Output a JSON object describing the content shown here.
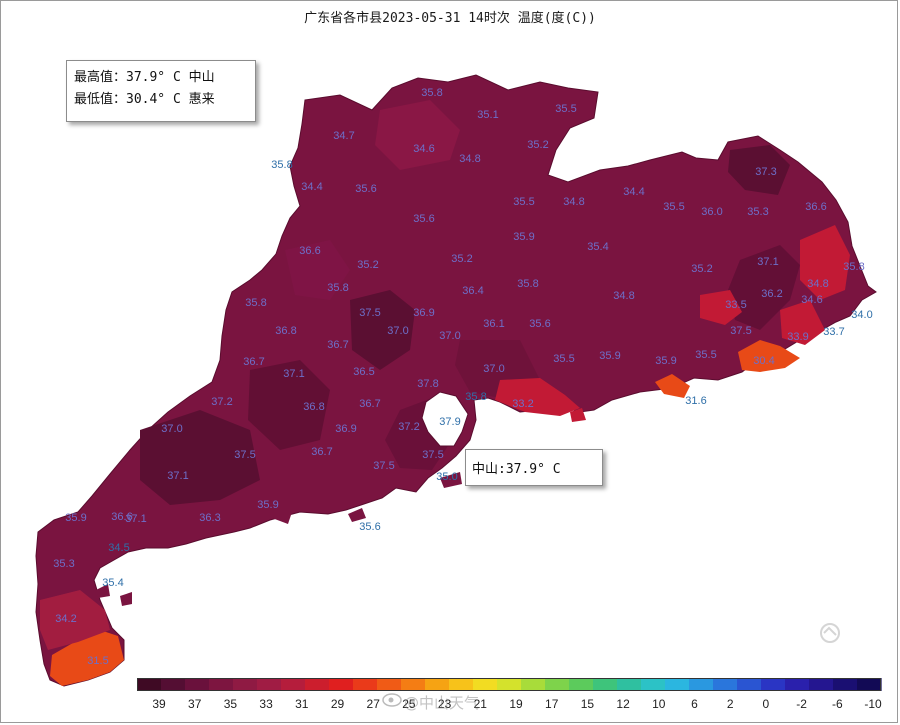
{
  "title": "广东省各市县2023-05-31 14时次 温度(度(C))",
  "stats": {
    "max_line": "最高值：37.9° C 中山",
    "min_line": "最低值：30.4° C 惠来"
  },
  "tooltip": "中山:37.9° C",
  "legend": {
    "labels": [
      "39",
      "37",
      "35",
      "33",
      "31",
      "29",
      "27",
      "25",
      "23",
      "21",
      "19",
      "17",
      "15",
      "12",
      "10",
      "6",
      "2",
      "0",
      "-2",
      "-6",
      "-10"
    ],
    "colors": [
      "#3f0a24",
      "#540e33",
      "#6a113c",
      "#7d1540",
      "#8f1a43",
      "#a01c44",
      "#b51d3c",
      "#cc1e2d",
      "#e01f1f",
      "#ea3a1a",
      "#f05b16",
      "#f47d14",
      "#f6a313",
      "#f7c21a",
      "#f2dc22",
      "#d4e22c",
      "#a8dc3a",
      "#7ed34b",
      "#5ccb5c",
      "#3ec47b",
      "#2fc0a0",
      "#2cc2c6",
      "#2bb6e0",
      "#2a98e0",
      "#2a76dc",
      "#2a55d2",
      "#2a35c4",
      "#2a20ac",
      "#241690",
      "#1a0f72",
      "#120a55"
    ]
  },
  "map_values": [
    {
      "t": "35.8",
      "c": "in"
    },
    {
      "t": "35.1",
      "c": "in"
    },
    {
      "t": "35.5",
      "c": "in"
    },
    {
      "t": "34.7",
      "c": "in"
    },
    {
      "t": "35.8",
      "c": "out"
    },
    {
      "t": "34.6",
      "c": "in"
    },
    {
      "t": "34.8",
      "c": "in"
    },
    {
      "t": "35.2",
      "c": "in"
    },
    {
      "t": "34.4",
      "c": "in"
    },
    {
      "t": "35.6",
      "c": "in"
    },
    {
      "t": "35.5",
      "c": "in"
    },
    {
      "t": "34.8",
      "c": "in"
    },
    {
      "t": "34.4",
      "c": "in"
    },
    {
      "t": "35.5",
      "c": "in"
    },
    {
      "t": "36.0",
      "c": "in"
    },
    {
      "t": "35.3",
      "c": "in"
    },
    {
      "t": "35.2",
      "c": "in"
    },
    {
      "t": "37.3",
      "c": "in"
    },
    {
      "t": "36.6",
      "c": "in"
    },
    {
      "t": "35.6",
      "c": "in"
    },
    {
      "t": "35.9",
      "c": "in"
    },
    {
      "t": "35.4",
      "c": "in"
    },
    {
      "t": "36.6",
      "c": "in"
    },
    {
      "t": "35.2",
      "c": "in"
    },
    {
      "t": "35.2",
      "c": "in"
    },
    {
      "t": "37.1",
      "c": "in"
    },
    {
      "t": "33.5",
      "c": "in"
    },
    {
      "t": "35.8",
      "c": "in"
    },
    {
      "t": "35.8",
      "c": "in"
    },
    {
      "t": "36.4",
      "c": "in"
    },
    {
      "t": "35.8",
      "c": "in"
    },
    {
      "t": "34.8",
      "c": "in"
    },
    {
      "t": "36.2",
      "c": "in"
    },
    {
      "t": "34.8",
      "c": "in"
    },
    {
      "t": "35.8",
      "c": "in"
    },
    {
      "t": "33.9",
      "c": "in"
    },
    {
      "t": "34.0",
      "c": "out"
    },
    {
      "t": "37.5",
      "c": "in"
    },
    {
      "t": "37.0",
      "c": "in"
    },
    {
      "t": "36.9",
      "c": "in"
    },
    {
      "t": "36.1",
      "c": "in"
    },
    {
      "t": "35.6",
      "c": "in"
    },
    {
      "t": "37.5",
      "c": "in"
    },
    {
      "t": "34.6",
      "c": "in"
    },
    {
      "t": "33.7",
      "c": "out"
    },
    {
      "t": "36.8",
      "c": "in"
    },
    {
      "t": "36.7",
      "c": "in"
    },
    {
      "t": "37.0",
      "c": "in"
    },
    {
      "t": "35.5",
      "c": "in"
    },
    {
      "t": "35.9",
      "c": "in"
    },
    {
      "t": "35.9",
      "c": "in"
    },
    {
      "t": "35.5",
      "c": "in"
    },
    {
      "t": "30.4",
      "c": "in"
    },
    {
      "t": "36.7",
      "c": "in"
    },
    {
      "t": "37.1",
      "c": "in"
    },
    {
      "t": "36.5",
      "c": "in"
    },
    {
      "t": "37.8",
      "c": "in"
    },
    {
      "t": "37.0",
      "c": "in"
    },
    {
      "t": "31.6",
      "c": "out"
    },
    {
      "t": "37.2",
      "c": "in"
    },
    {
      "t": "36.8",
      "c": "in"
    },
    {
      "t": "36.7",
      "c": "in"
    },
    {
      "t": "35.8",
      "c": "out"
    },
    {
      "t": "33.2",
      "c": "in"
    },
    {
      "t": "37.0",
      "c": "in"
    },
    {
      "t": "36.9",
      "c": "in"
    },
    {
      "t": "37.2",
      "c": "in"
    },
    {
      "t": "37.9",
      "c": "out"
    },
    {
      "t": "37.5",
      "c": "in"
    },
    {
      "t": "36.7",
      "c": "in"
    },
    {
      "t": "37.5",
      "c": "in"
    },
    {
      "t": "37.5",
      "c": "in"
    },
    {
      "t": "37.1",
      "c": "in"
    },
    {
      "t": "35.0",
      "c": "out"
    },
    {
      "t": "35.9",
      "c": "in"
    },
    {
      "t": "36.6",
      "c": "in"
    },
    {
      "t": "37.1",
      "c": "in"
    },
    {
      "t": "36.3",
      "c": "in"
    },
    {
      "t": "35.9",
      "c": "in"
    },
    {
      "t": "35.6",
      "c": "out"
    },
    {
      "t": "34.5",
      "c": "out"
    },
    {
      "t": "35.3",
      "c": "in"
    },
    {
      "t": "35.4",
      "c": "out"
    },
    {
      "t": "34.2",
      "c": "in"
    },
    {
      "t": "31.5",
      "c": "in"
    }
  ],
  "watermark": "中山天气"
}
